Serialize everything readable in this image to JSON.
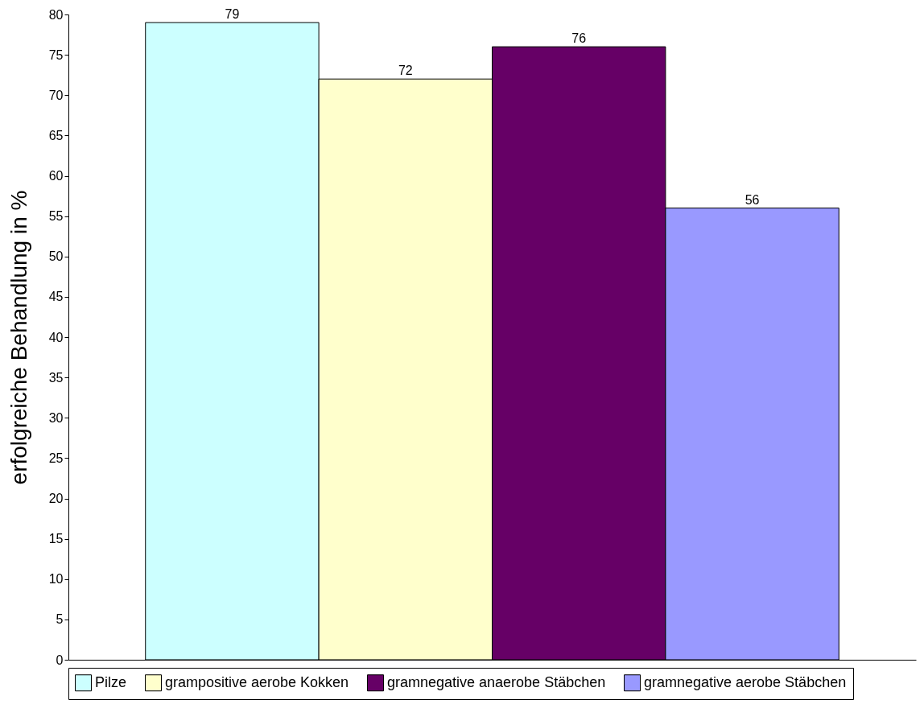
{
  "chart_data": {
    "type": "bar",
    "ylabel": "erfolgreiche Behandlung in %",
    "categories": [
      null
    ],
    "series": [
      {
        "name": "Pilze",
        "color": "#ccffff",
        "values": [
          79
        ]
      },
      {
        "name": "grampositive aerobe Kokken",
        "color": "#ffffcc",
        "values": [
          72
        ]
      },
      {
        "name": "gramnegative anaerobe Stäbchen",
        "color": "#660066",
        "values": [
          76
        ]
      },
      {
        "name": "gramnegative aerobe Stäbchen",
        "color": "#9999ff",
        "values": [
          56
        ]
      }
    ],
    "ylim": [
      0,
      80
    ],
    "yticks": [
      0,
      5,
      10,
      15,
      20,
      25,
      30,
      35,
      40,
      45,
      50,
      55,
      60,
      65,
      70,
      75,
      80
    ],
    "data_labels": true,
    "legend": "bottom",
    "tick_labels": "y"
  }
}
